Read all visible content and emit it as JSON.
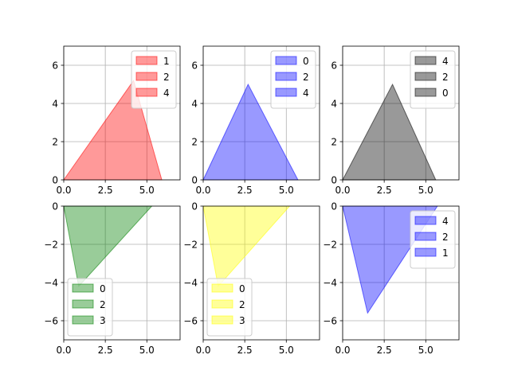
{
  "chart_data": [
    {
      "type": "area",
      "position": "row1-col1",
      "color": "#ff0000",
      "alpha": 0.4,
      "polygon": [
        [
          0,
          0
        ],
        [
          4.2,
          5.2
        ],
        [
          5.9,
          0
        ]
      ],
      "xlim": [
        0,
        7
      ],
      "ylim": [
        0,
        7
      ],
      "xticks": [
        0,
        2.5,
        5
      ],
      "xtick_labels": [
        "0.0",
        "2.5",
        "5.0"
      ],
      "yticks": [
        0,
        2,
        4,
        6
      ],
      "ytick_labels": [
        "0",
        "2",
        "4",
        "6"
      ],
      "grid": true,
      "legend": {
        "placement": "upper right",
        "entries": [
          "1",
          "2",
          "4"
        ]
      }
    },
    {
      "type": "area",
      "position": "row1-col2",
      "color": "#0000ff",
      "alpha": 0.4,
      "polygon": [
        [
          0,
          0
        ],
        [
          2.7,
          5.0
        ],
        [
          5.7,
          0
        ]
      ],
      "xlim": [
        0,
        7
      ],
      "ylim": [
        0,
        7
      ],
      "xticks": [
        0,
        2.5,
        5
      ],
      "xtick_labels": [
        "0.0",
        "2.5",
        "5.0"
      ],
      "yticks": [
        0,
        2,
        4,
        6
      ],
      "ytick_labels": [
        "0",
        "2",
        "4",
        "6"
      ],
      "grid": true,
      "legend": {
        "placement": "upper right",
        "entries": [
          "0",
          "2",
          "4"
        ]
      }
    },
    {
      "type": "area",
      "position": "row1-col3",
      "color": "#000000",
      "alpha": 0.4,
      "polygon": [
        [
          0,
          0
        ],
        [
          3.0,
          5.0
        ],
        [
          5.6,
          0
        ]
      ],
      "xlim": [
        0,
        7
      ],
      "ylim": [
        0,
        7
      ],
      "xticks": [
        0,
        2.5,
        5
      ],
      "xtick_labels": [
        "0.0",
        "2.5",
        "5.0"
      ],
      "yticks": [
        0,
        2,
        4,
        6
      ],
      "ytick_labels": [
        "0",
        "2",
        "4",
        "6"
      ],
      "grid": true,
      "legend": {
        "placement": "upper right",
        "entries": [
          "4",
          "2",
          "0"
        ]
      }
    },
    {
      "type": "area",
      "position": "row2-col1",
      "color": "#008000",
      "alpha": 0.4,
      "polygon": [
        [
          0,
          0
        ],
        [
          5.3,
          0
        ],
        [
          0.9,
          -4.2
        ]
      ],
      "xlim": [
        0,
        7
      ],
      "ylim": [
        -7,
        0
      ],
      "xticks": [
        0,
        2.5,
        5
      ],
      "xtick_labels": [
        "0.0",
        "2.5",
        "5.0"
      ],
      "yticks": [
        0,
        -2,
        -4,
        -6
      ],
      "ytick_labels": [
        "0",
        "−2",
        "−4",
        "−6"
      ],
      "grid": true,
      "legend": {
        "placement": "lower left",
        "entries": [
          "0",
          "2",
          "3"
        ]
      }
    },
    {
      "type": "area",
      "position": "row2-col2",
      "color": "#ffff00",
      "alpha": 0.4,
      "polygon": [
        [
          0,
          0
        ],
        [
          5.2,
          0
        ],
        [
          0.9,
          -4.2
        ]
      ],
      "xlim": [
        0,
        7
      ],
      "ylim": [
        -7,
        0
      ],
      "xticks": [
        0,
        2.5,
        5
      ],
      "xtick_labels": [
        "0.0",
        "2.5",
        "5.0"
      ],
      "yticks": [
        0,
        -2,
        -4,
        -6
      ],
      "ytick_labels": [
        "0",
        "−2",
        "−4",
        "−6"
      ],
      "grid": true,
      "legend": {
        "placement": "lower left",
        "entries": [
          "0",
          "2",
          "3"
        ]
      }
    },
    {
      "type": "area",
      "position": "row2-col3",
      "color": "#0000ff",
      "alpha": 0.4,
      "polygon": [
        [
          0,
          0
        ],
        [
          5.7,
          0
        ],
        [
          1.5,
          -5.6
        ]
      ],
      "xlim": [
        0,
        7
      ],
      "ylim": [
        -7,
        0
      ],
      "xticks": [
        0,
        2.5,
        5
      ],
      "xtick_labels": [
        "0.0",
        "2.5",
        "5.0"
      ],
      "yticks": [
        0,
        -2,
        -4,
        -6
      ],
      "ytick_labels": [
        "0",
        "−2",
        "−4",
        "−6"
      ],
      "grid": true,
      "legend": {
        "placement": "upper right",
        "entries": [
          "4",
          "2",
          "1"
        ]
      }
    }
  ]
}
